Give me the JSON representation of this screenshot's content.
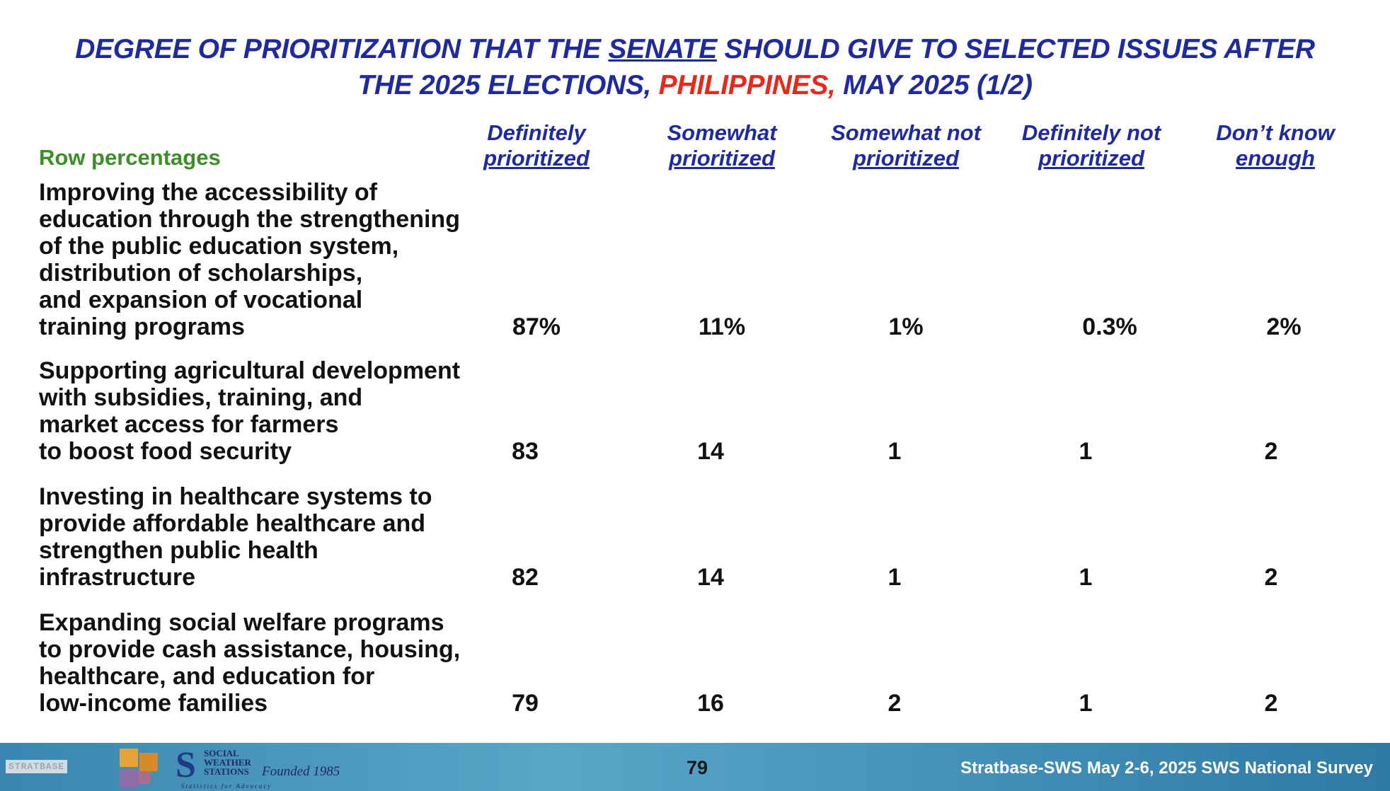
{
  "title": {
    "part1": "DEGREE OF PRIORITIZATION THAT THE ",
    "underlined": "SENATE",
    "part2": " SHOULD GIVE TO SELECTED ISSUES AFTER",
    "line2_part1": "THE 2025 ELECTIONS, ",
    "country": "PHILIPPINES,",
    "line2_part2": " MAY 2025 (1/2)"
  },
  "colors": {
    "title_blue": "#1f2a9c",
    "country_red": "#e32a1d",
    "label_green": "#3c8f27"
  },
  "row_label": "Row percentages",
  "columns": [
    {
      "line1": "Definitely",
      "line2": "prioritized"
    },
    {
      "line1": "Somewhat",
      "line2": "prioritized"
    },
    {
      "line1": "Somewhat not",
      "line2": "prioritized"
    },
    {
      "line1": "Definitely not",
      "line2": "prioritized"
    },
    {
      "line1": "Don’t know",
      "line2": "enough"
    }
  ],
  "rows": [
    {
      "lines": [
        "Improving the accessibility of",
        "education through the strengthening",
        "of the public education system,",
        "distribution of scholarships,",
        "and expansion of vocational",
        "training programs"
      ],
      "values": [
        "87%",
        "11%",
        "1%",
        "0.3%",
        "2%"
      ]
    },
    {
      "lines": [
        "Supporting agricultural development",
        "with subsidies, training, and",
        "market access for farmers",
        "to boost food security"
      ],
      "values": [
        "83",
        "14",
        "1",
        "1",
        "2"
      ]
    },
    {
      "lines": [
        "Investing in healthcare systems to",
        "provide affordable healthcare and",
        "strengthen public health",
        "infrastructure"
      ],
      "values": [
        "82",
        "14",
        "1",
        "1",
        "2"
      ]
    },
    {
      "lines": [
        "Expanding social welfare programs",
        "to provide cash assistance, housing,",
        "healthcare, and education for",
        "low-income families"
      ],
      "values": [
        "79",
        "16",
        "2",
        "1",
        "2"
      ]
    }
  ],
  "footer": {
    "logo_text": "STRATBASE",
    "sws_lines": [
      "SOCIAL",
      "WEATHER",
      "STATIONS"
    ],
    "founded": "Founded 1985",
    "tagline": "Statistics for Advocacy",
    "page": "79",
    "source": "Stratbase-SWS May 2-6, 2025 SWS National Survey"
  }
}
